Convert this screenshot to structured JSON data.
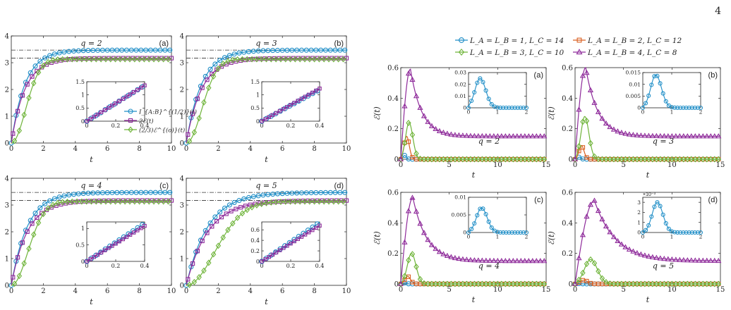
{
  "page_number": "4",
  "colors": {
    "blue": "#1f8ec7",
    "purple": "#8e2a9a",
    "green": "#6fb43a",
    "orange": "#d95f20",
    "ref_line": "#333333"
  },
  "left_figure": {
    "reference_lines": [
      3.47,
      3.17
    ],
    "legend": [
      "I_{A:B}^{(1/2)}(t)",
      "2ℰ(t)",
      "(2/3)ℰ^{(o)}(t)"
    ],
    "xlabel": "t"
  },
  "right_figure": {
    "legend": [
      "L_A = L_B = 1, L_C = 14",
      "L_A = L_B = 2, L_C = 12",
      "L_A = L_B = 3, L_C = 10",
      "L_A = L_B = 4, L_C = 8"
    ],
    "xlabel": "t",
    "ylabel": "ℰ(t)"
  },
  "chart_data": [
    {
      "id": "left-a",
      "type": "line",
      "panel_label": "(a)",
      "title": "q = 2",
      "xlabel": "t",
      "xlim": [
        0,
        10
      ],
      "ylim": [
        0,
        4
      ],
      "xticks": [
        0,
        2,
        4,
        6,
        8,
        10
      ],
      "yticks": [
        0,
        1,
        2,
        3,
        4
      ],
      "series": [
        {
          "name": "I_{A:B}^{(1/2)}(t)",
          "saturation": 3.47,
          "tau": 0.85,
          "shape": "exp"
        },
        {
          "name": "2ℰ(t)",
          "saturation": 3.17,
          "tau": 0.85,
          "shape": "exp"
        },
        {
          "name": "(2/3)ℰ^{(o)}(t)",
          "saturation": 3.13,
          "tau": 1.25,
          "shape": "sigmoid"
        }
      ],
      "inset": {
        "xlim": [
          0,
          0.4
        ],
        "ylim": [
          0,
          1.5
        ],
        "xticks": [
          0,
          0.2,
          0.4
        ],
        "yticks": [
          0,
          0.5,
          1,
          1.5
        ],
        "slope_blue": 3.4,
        "slope_purple": 3.4
      }
    },
    {
      "id": "left-b",
      "type": "line",
      "panel_label": "(b)",
      "title": "q = 3",
      "xlabel": "t",
      "xlim": [
        0,
        10
      ],
      "ylim": [
        0,
        4
      ],
      "xticks": [
        0,
        2,
        4,
        6,
        8,
        10
      ],
      "yticks": [
        0,
        1,
        2,
        3,
        4
      ],
      "series": [
        {
          "name": "I_{A:B}^{(1/2)}(t)",
          "saturation": 3.47,
          "tau": 0.95,
          "shape": "exp"
        },
        {
          "name": "2ℰ(t)",
          "saturation": 3.17,
          "tau": 0.95,
          "shape": "exp"
        },
        {
          "name": "(2/3)ℰ^{(o)}(t)",
          "saturation": 3.13,
          "tau": 1.35,
          "shape": "sigmoid"
        }
      ],
      "inset": {
        "xlim": [
          0,
          0.4
        ],
        "ylim": [
          0,
          1.5
        ],
        "xticks": [
          0,
          0.2,
          0.4
        ],
        "yticks": [
          0,
          0.5,
          1,
          1.5
        ],
        "slope_blue": 3.0,
        "slope_purple": 3.1
      }
    },
    {
      "id": "left-c",
      "type": "line",
      "panel_label": "(c)",
      "title": "q = 4",
      "xlabel": "t",
      "xlim": [
        0,
        10
      ],
      "ylim": [
        0,
        4
      ],
      "xticks": [
        0,
        2,
        4,
        6,
        8,
        10
      ],
      "yticks": [
        0,
        1,
        2,
        3,
        4
      ],
      "series": [
        {
          "name": "I_{A:B}^{(1/2)}(t)",
          "saturation": 3.47,
          "tau": 1.0,
          "shape": "exp"
        },
        {
          "name": "2ℰ(t)",
          "saturation": 3.17,
          "tau": 1.0,
          "shape": "exp"
        },
        {
          "name": "(2/3)ℰ^{(o)}(t)",
          "saturation": 3.13,
          "tau": 1.45,
          "shape": "sigmoid"
        }
      ],
      "inset": {
        "xlim": [
          0,
          0.4
        ],
        "ylim": [
          0,
          1.2
        ],
        "xticks": [
          0,
          0.2,
          0.4
        ],
        "yticks": [
          0,
          0.5,
          1
        ],
        "slope_blue": 2.9,
        "slope_purple": 2.7
      }
    },
    {
      "id": "left-d",
      "type": "line",
      "panel_label": "(d)",
      "title": "q = 5",
      "xlabel": "t",
      "xlim": [
        0,
        10
      ],
      "ylim": [
        0,
        4
      ],
      "xticks": [
        0,
        2,
        4,
        6,
        8,
        10
      ],
      "yticks": [
        0,
        1,
        2,
        3,
        4
      ],
      "series": [
        {
          "name": "I_{A:B}^{(1/2)}(t)",
          "saturation": 3.47,
          "tau": 1.35,
          "shape": "exp"
        },
        {
          "name": "2ℰ(t)",
          "saturation": 3.17,
          "tau": 1.35,
          "shape": "exp"
        },
        {
          "name": "(2/3)ℰ^{(o)}(t)",
          "saturation": 3.13,
          "tau": 2.5,
          "shape": "sigmoid"
        }
      ],
      "inset": {
        "xlim": [
          0,
          0.4
        ],
        "ylim": [
          0,
          0.75
        ],
        "xticks": [
          0,
          0.2,
          0.4
        ],
        "yticks": [
          0,
          0.2,
          0.4,
          0.6
        ],
        "slope_blue": 1.85,
        "slope_purple": 1.7
      }
    },
    {
      "id": "right-a",
      "type": "line",
      "panel_label": "(a)",
      "title": "q = 2",
      "xlabel": "t",
      "ylabel": "ℰ(t)",
      "xlim": [
        0,
        15
      ],
      "ylim": [
        0,
        0.6
      ],
      "xticks": [
        0,
        5,
        10,
        15
      ],
      "yticks": [
        0,
        0.2,
        0.4,
        0.6
      ],
      "series": [
        {
          "name": "L_A = L_B = 1, L_C = 14",
          "peak": 0.025,
          "tpeak": 0.4,
          "width": 0.22,
          "tail": 0
        },
        {
          "name": "L_A = L_B = 2, L_C = 12",
          "peak": 0.15,
          "tpeak": 0.6,
          "width": 0.35,
          "tail": 0
        },
        {
          "name": "L_A = L_B = 3, L_C = 10",
          "peak": 0.24,
          "tpeak": 0.85,
          "width": 0.5,
          "tail": 0
        },
        {
          "name": "L_A = L_B = 4, L_C = 8",
          "peak": 0.59,
          "tpeak": 1.0,
          "width": 0.5,
          "tail": 0.15,
          "decay": 1.4
        }
      ],
      "inset": {
        "xlim": [
          0,
          2
        ],
        "ylim": [
          0,
          0.03
        ],
        "xticks": [
          0,
          1,
          2
        ],
        "yticks": [
          0,
          0.01,
          0.02,
          0.03
        ],
        "ytick_labels": [
          "0",
          "0.01",
          "0.02",
          "0.03"
        ],
        "peak": 0.025,
        "tpeak": 0.4,
        "multiplier": ""
      }
    },
    {
      "id": "right-b",
      "type": "line",
      "panel_label": "(b)",
      "title": "q = 3",
      "xlabel": "t",
      "ylabel": "ℰ(t)",
      "xlim": [
        0,
        15
      ],
      "ylim": [
        0,
        0.6
      ],
      "xticks": [
        0,
        5,
        10,
        15
      ],
      "yticks": [
        0,
        0.2,
        0.4,
        0.6
      ],
      "series": [
        {
          "name": "L_A = L_B = 1, L_C = 14",
          "peak": 0.014,
          "tpeak": 0.45,
          "width": 0.22,
          "tail": 0
        },
        {
          "name": "L_A = L_B = 2, L_C = 12",
          "peak": 0.09,
          "tpeak": 0.65,
          "width": 0.35,
          "tail": 0
        },
        {
          "name": "L_A = L_B = 3, L_C = 10",
          "peak": 0.28,
          "tpeak": 1.0,
          "width": 0.55,
          "tail": 0
        },
        {
          "name": "L_A = L_B = 4, L_C = 8",
          "peak": 0.6,
          "tpeak": 1.1,
          "width": 0.55,
          "tail": 0.15,
          "decay": 1.5
        }
      ],
      "inset": {
        "xlim": [
          0,
          2
        ],
        "ylim": [
          0,
          0.015
        ],
        "xticks": [
          0,
          1,
          2
        ],
        "yticks": [
          0,
          0.005,
          0.01,
          0.015
        ],
        "ytick_labels": [
          "0",
          "0.005",
          "0.01",
          "0.015"
        ],
        "peak": 0.014,
        "tpeak": 0.45,
        "multiplier": ""
      }
    },
    {
      "id": "right-c",
      "type": "line",
      "panel_label": "(c)",
      "title": "q = 4",
      "xlabel": "t",
      "ylabel": "ℰ(t)",
      "xlim": [
        0,
        15
      ],
      "ylim": [
        0,
        0.6
      ],
      "xticks": [
        0,
        5,
        10,
        15
      ],
      "yticks": [
        0,
        0.2,
        0.4,
        0.6
      ],
      "series": [
        {
          "name": "L_A = L_B = 1, L_C = 14",
          "peak": 0.007,
          "tpeak": 0.45,
          "width": 0.22,
          "tail": 0
        },
        {
          "name": "L_A = L_B = 2, L_C = 12",
          "peak": 0.05,
          "tpeak": 0.7,
          "width": 0.38,
          "tail": 0
        },
        {
          "name": "L_A = L_B = 3, L_C = 10",
          "peak": 0.2,
          "tpeak": 1.1,
          "width": 0.6,
          "tail": 0
        },
        {
          "name": "L_A = L_B = 4, L_C = 8",
          "peak": 0.565,
          "tpeak": 1.25,
          "width": 0.6,
          "tail": 0.15,
          "decay": 1.7
        }
      ],
      "inset": {
        "xlim": [
          0,
          2
        ],
        "ylim": [
          0,
          0.01
        ],
        "xticks": [
          0,
          1,
          2
        ],
        "yticks": [
          0,
          0.005,
          0.01
        ],
        "ytick_labels": [
          "0",
          "0.005",
          "0.01"
        ],
        "peak": 0.007,
        "tpeak": 0.45,
        "multiplier": ""
      }
    },
    {
      "id": "right-d",
      "type": "line",
      "panel_label": "(d)",
      "title": "q = 5",
      "xlabel": "t",
      "ylabel": "ℰ(t)",
      "xlim": [
        0,
        15
      ],
      "ylim": [
        0,
        0.6
      ],
      "xticks": [
        0,
        5,
        10,
        15
      ],
      "yticks": [
        0,
        0.2,
        0.4,
        0.6
      ],
      "series": [
        {
          "name": "L_A = L_B = 1, L_C = 14",
          "peak": 0.003,
          "tpeak": 0.5,
          "width": 0.25,
          "tail": 0
        },
        {
          "name": "L_A = L_B = 2, L_C = 12",
          "peak": 0.025,
          "tpeak": 0.9,
          "width": 0.5,
          "tail": 0
        },
        {
          "name": "L_A = L_B = 3, L_C = 10",
          "peak": 0.16,
          "tpeak": 1.6,
          "width": 0.9,
          "tail": 0
        },
        {
          "name": "L_A = L_B = 4, L_C = 8",
          "peak": 0.545,
          "tpeak": 2.0,
          "width": 0.9,
          "tail": 0.15,
          "decay": 2.6
        }
      ],
      "inset": {
        "xlim": [
          0,
          2
        ],
        "ylim": [
          0,
          0.0035
        ],
        "xticks": [
          0,
          1,
          2
        ],
        "yticks": [
          0,
          0.001,
          0.002,
          0.003
        ],
        "ytick_labels": [
          "0",
          "1",
          "2",
          "3"
        ],
        "peak": 0.003,
        "tpeak": 0.5,
        "multiplier": "×10⁻³"
      }
    }
  ]
}
